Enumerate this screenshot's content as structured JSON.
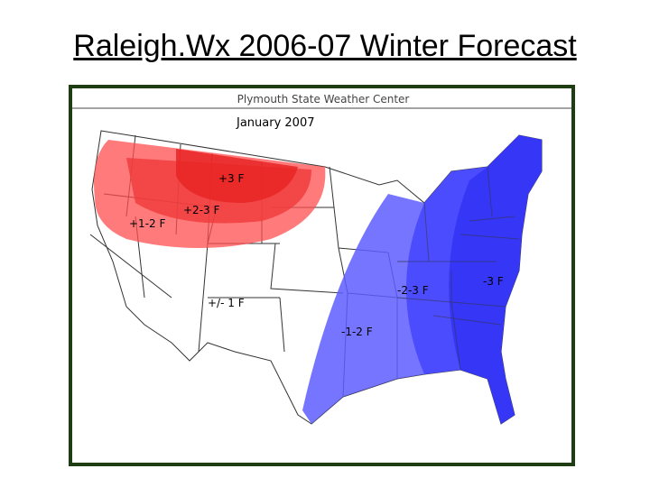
{
  "title": "Raleigh.Wx 2006-07 Winter Forecast",
  "map": {
    "source": "Plymouth State Weather Center",
    "period": "January 2007",
    "labels": [
      "+3 F",
      "+2-3 F",
      "+1-2 F",
      "+/- 1 F",
      "-2-3 F",
      "-3 F",
      "-1-2 F"
    ]
  }
}
